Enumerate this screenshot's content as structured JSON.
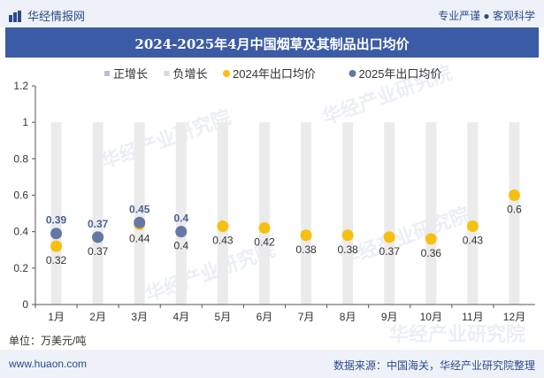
{
  "header": {
    "brand": "华经情报网",
    "tagline": "专业严谨 ● 客观科学"
  },
  "footer": {
    "site": "www.huaon.com",
    "source": "数据来源：中国海关，华经产业研究院整理",
    "unit": "单位：万美元/吨"
  },
  "watermark": {
    "text": "华经产业研究院",
    "url": "www.huaon.com"
  },
  "chart_data": {
    "type": "scatter",
    "title": "2024-2025年4月中国烟草及其制品出口均价",
    "categories": [
      "1月",
      "2月",
      "3月",
      "4月",
      "5月",
      "6月",
      "7月",
      "8月",
      "9月",
      "10月",
      "11月",
      "12月"
    ],
    "series": [
      {
        "name": "正增长",
        "color": "#b9c0d4",
        "values": []
      },
      {
        "name": "负增长",
        "color": "#d9d9d9",
        "values": []
      },
      {
        "name": "2024年出口均价",
        "color": "#f7c010",
        "values": [
          0.32,
          0.37,
          0.44,
          0.4,
          0.43,
          0.42,
          0.38,
          0.38,
          0.37,
          0.36,
          0.43,
          0.6
        ]
      },
      {
        "name": "2025年出口均价",
        "color": "#6478a8",
        "values": [
          0.39,
          0.37,
          0.45,
          0.4,
          null,
          null,
          null,
          null,
          null,
          null,
          null,
          null
        ]
      }
    ],
    "ylim": [
      0,
      1.2
    ],
    "yticks": [
      "0",
      "0.2",
      "0.4",
      "0.6",
      "0.8",
      "1",
      "1.2"
    ],
    "grid": false,
    "legend": "top"
  }
}
